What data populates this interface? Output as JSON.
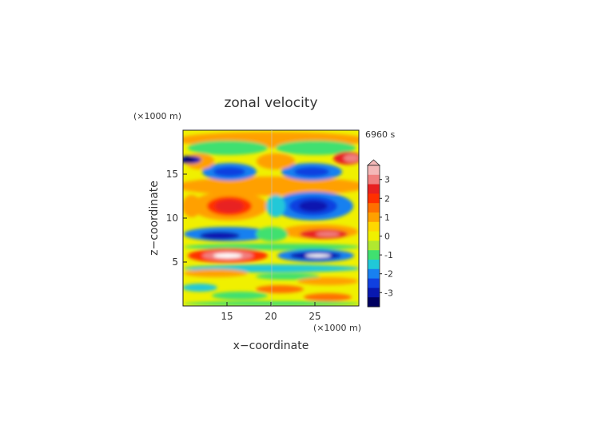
{
  "chart_data": {
    "type": "heatmap",
    "title": "zonal velocity",
    "xlabel": "x−coordinate",
    "ylabel": "z−coordinate",
    "x_unit": "(×1000 m)",
    "y_unit": "(×1000 m)",
    "time_label": "6960 s",
    "xlim": [
      10,
      30
    ],
    "ylim": [
      0,
      20
    ],
    "x_ticks": [
      15,
      20,
      25
    ],
    "y_ticks": [
      5,
      10,
      15
    ],
    "colorbar": {
      "ticks": [
        3,
        2,
        1,
        0,
        -1,
        -2,
        -3
      ],
      "levels": [
        {
          "value": 3.5,
          "color": "#f4b8b8"
        },
        {
          "value": 3.0,
          "color": "#f08080"
        },
        {
          "value": 2.5,
          "color": "#e82020"
        },
        {
          "value": 2.0,
          "color": "#ff3000"
        },
        {
          "value": 1.5,
          "color": "#ff7000"
        },
        {
          "value": 1.0,
          "color": "#ffa000"
        },
        {
          "value": 0.5,
          "color": "#ffd800"
        },
        {
          "value": 0.0,
          "color": "#f0f000"
        },
        {
          "value": -0.5,
          "color": "#b0e830"
        },
        {
          "value": -1.0,
          "color": "#40e070"
        },
        {
          "value": -1.5,
          "color": "#20c8d8"
        },
        {
          "value": -2.0,
          "color": "#1880f0"
        },
        {
          "value": -2.5,
          "color": "#1040e0"
        },
        {
          "value": -3.0,
          "color": "#0818b0"
        },
        {
          "value": -3.5,
          "color": "#000060"
        }
      ]
    }
  }
}
